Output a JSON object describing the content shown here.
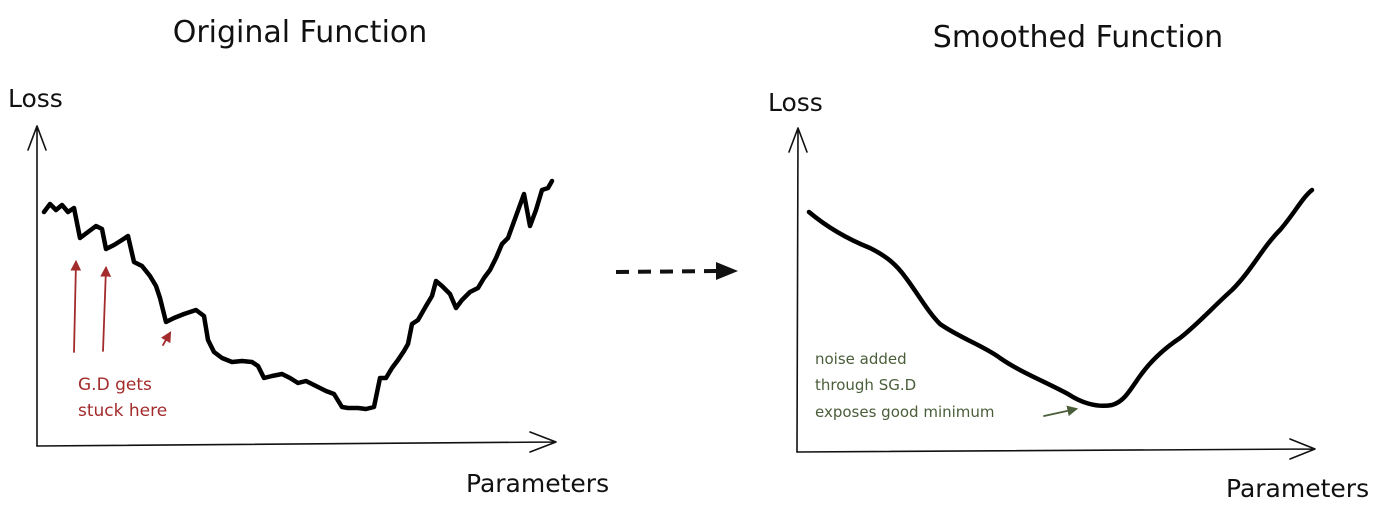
{
  "left_panel": {
    "title": "Original Function",
    "y_axis_label": "Loss",
    "x_axis_label": "Parameters",
    "annotation_lines": [
      "G.D gets",
      "stuck here"
    ],
    "annotation_color": "#a32b2b"
  },
  "right_panel": {
    "title": "Smoothed Function",
    "y_axis_label": "Loss",
    "x_axis_label": "Parameters",
    "annotation_lines": [
      "noise added",
      "through SG.D",
      "exposes good minimum"
    ],
    "annotation_color": "#4a5e3a"
  },
  "transition_arrow": {
    "style": "dashed",
    "direction": "right"
  }
}
